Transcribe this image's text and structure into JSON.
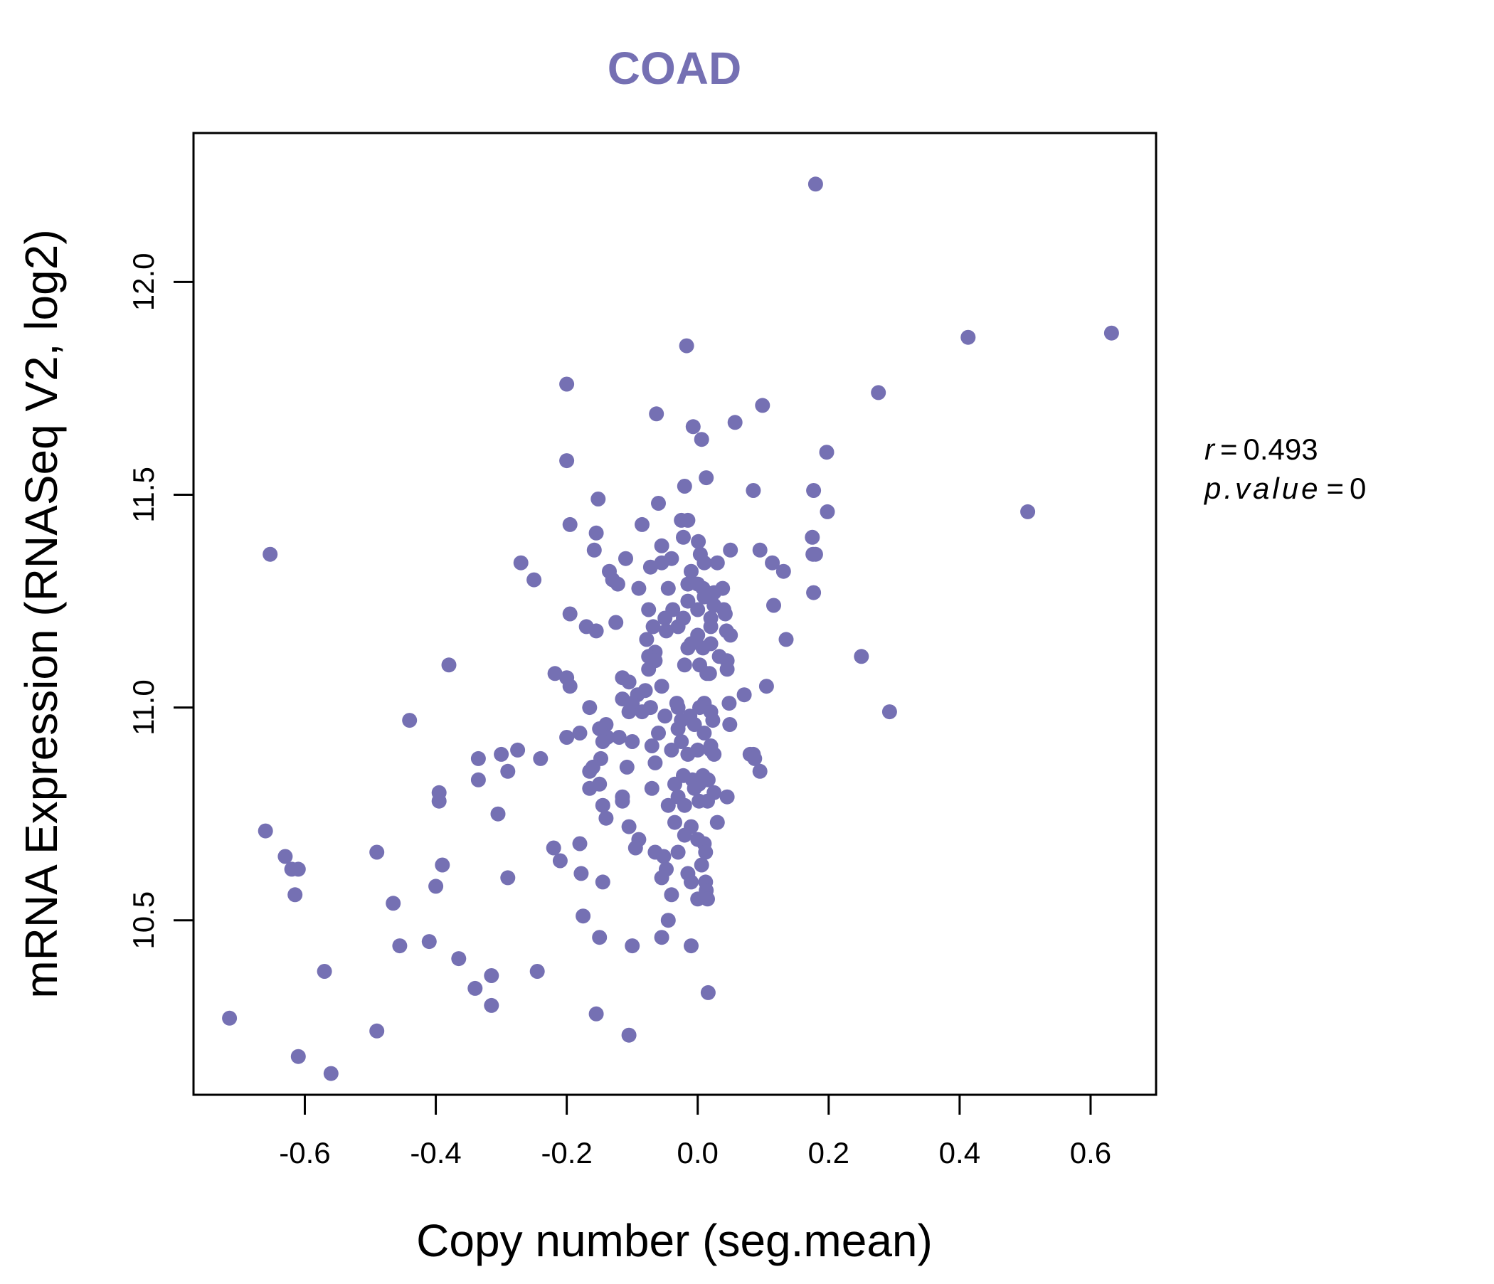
{
  "chart_data": {
    "type": "scatter",
    "title": "COAD",
    "xlabel": "Copy number (seg.mean)",
    "ylabel": "mRNA Expression (RNASeq V2, log2)",
    "xlim": [
      -0.77,
      0.7
    ],
    "ylim": [
      10.09,
      12.35
    ],
    "xticks": [
      -0.6,
      -0.4,
      -0.2,
      0.0,
      0.2,
      0.4,
      0.6
    ],
    "xtick_labels": [
      "-0.6",
      "-0.4",
      "-0.2",
      "0.0",
      "0.2",
      "0.4",
      "0.6"
    ],
    "yticks": [
      10.5,
      11.0,
      11.5,
      12.0
    ],
    "ytick_labels": [
      "10.5",
      "11.0",
      "11.5",
      "12.0"
    ],
    "grid": false,
    "legend": "none",
    "annotations": {
      "r_label": "r",
      "r_value": "0.493",
      "p_label": "p.value",
      "p_value": "0"
    },
    "colors": {
      "points": "#7570b3",
      "title": "#7570b3",
      "axis": "#000000"
    },
    "points": [
      [
        0.18,
        12.23
      ],
      [
        0.632,
        11.88
      ],
      [
        0.413,
        11.87
      ],
      [
        -0.017,
        11.85
      ],
      [
        0.276,
        11.74
      ],
      [
        -0.2,
        11.76
      ],
      [
        0.099,
        11.71
      ],
      [
        -0.063,
        11.69
      ],
      [
        0.057,
        11.67
      ],
      [
        -0.007,
        11.66
      ],
      [
        0.006,
        11.63
      ],
      [
        -0.2,
        11.58
      ],
      [
        0.197,
        11.6
      ],
      [
        -0.02,
        11.52
      ],
      [
        0.013,
        11.54
      ],
      [
        -0.152,
        11.49
      ],
      [
        -0.06,
        11.48
      ],
      [
        0.085,
        11.51
      ],
      [
        0.177,
        11.51
      ],
      [
        0.504,
        11.46
      ],
      [
        0.198,
        11.46
      ],
      [
        -0.195,
        11.43
      ],
      [
        -0.085,
        11.43
      ],
      [
        -0.025,
        11.44
      ],
      [
        -0.015,
        11.44
      ],
      [
        -0.155,
        11.41
      ],
      [
        -0.022,
        11.4
      ],
      [
        0.175,
        11.4
      ],
      [
        0.001,
        11.39
      ],
      [
        -0.158,
        11.37
      ],
      [
        -0.055,
        11.38
      ],
      [
        0.05,
        11.37
      ],
      [
        0.095,
        11.37
      ],
      [
        0.004,
        11.36
      ],
      [
        -0.653,
        11.36
      ],
      [
        0.176,
        11.36
      ],
      [
        0.18,
        11.36
      ],
      [
        -0.27,
        11.34
      ],
      [
        -0.11,
        11.35
      ],
      [
        -0.04,
        11.35
      ],
      [
        -0.055,
        11.34
      ],
      [
        0.114,
        11.34
      ],
      [
        0.03,
        11.34
      ],
      [
        0.01,
        11.34
      ],
      [
        -0.072,
        11.33
      ],
      [
        -0.135,
        11.32
      ],
      [
        -0.01,
        11.32
      ],
      [
        0.131,
        11.32
      ],
      [
        -0.25,
        11.3
      ],
      [
        -0.13,
        11.3
      ],
      [
        -0.015,
        11.29
      ],
      [
        -0.122,
        11.29
      ],
      [
        0.0,
        11.29
      ],
      [
        0.008,
        11.28
      ],
      [
        -0.09,
        11.28
      ],
      [
        -0.045,
        11.28
      ],
      [
        0.038,
        11.28
      ],
      [
        0.025,
        11.27
      ],
      [
        0.177,
        11.27
      ],
      [
        0.01,
        11.26
      ],
      [
        -0.015,
        11.25
      ],
      [
        0.025,
        11.24
      ],
      [
        0.116,
        11.24
      ],
      [
        -0.038,
        11.23
      ],
      [
        -0.075,
        11.23
      ],
      [
        0.04,
        11.23
      ],
      [
        0.0,
        11.23
      ],
      [
        -0.195,
        11.22
      ],
      [
        0.042,
        11.22
      ],
      [
        -0.022,
        11.21
      ],
      [
        -0.05,
        11.21
      ],
      [
        0.02,
        11.21
      ],
      [
        -0.125,
        11.2
      ],
      [
        -0.17,
        11.19
      ],
      [
        -0.068,
        11.19
      ],
      [
        -0.03,
        11.19
      ],
      [
        0.02,
        11.19
      ],
      [
        -0.155,
        11.18
      ],
      [
        -0.048,
        11.18
      ],
      [
        0.044,
        11.18
      ],
      [
        0.05,
        11.17
      ],
      [
        0.0,
        11.17
      ],
      [
        0.135,
        11.16
      ],
      [
        -0.078,
        11.16
      ],
      [
        -0.01,
        11.15
      ],
      [
        0.02,
        11.15
      ],
      [
        0.008,
        11.14
      ],
      [
        -0.065,
        11.13
      ],
      [
        -0.015,
        11.14
      ],
      [
        0.033,
        11.12
      ],
      [
        -0.075,
        11.12
      ],
      [
        0.25,
        11.12
      ],
      [
        0.045,
        11.11
      ],
      [
        -0.065,
        11.11
      ],
      [
        -0.02,
        11.1
      ],
      [
        0.003,
        11.1
      ],
      [
        -0.38,
        11.1
      ],
      [
        -0.075,
        11.09
      ],
      [
        0.045,
        11.09
      ],
      [
        -0.218,
        11.08
      ],
      [
        -0.2,
        11.07
      ],
      [
        0.014,
        11.08
      ],
      [
        0.018,
        11.08
      ],
      [
        -0.105,
        11.06
      ],
      [
        -0.115,
        11.07
      ],
      [
        -0.195,
        11.05
      ],
      [
        -0.055,
        11.05
      ],
      [
        0.105,
        11.05
      ],
      [
        -0.08,
        11.04
      ],
      [
        -0.092,
        11.03
      ],
      [
        0.071,
        11.03
      ],
      [
        -0.115,
        11.02
      ],
      [
        -0.1,
        11.01
      ],
      [
        -0.032,
        11.01
      ],
      [
        -0.165,
        11.0
      ],
      [
        0.01,
        11.01
      ],
      [
        0.048,
        11.01
      ],
      [
        -0.072,
        11.0
      ],
      [
        0.003,
        11.0
      ],
      [
        -0.03,
        11.0
      ],
      [
        -0.105,
        10.99
      ],
      [
        -0.085,
        10.99
      ],
      [
        0.02,
        10.99
      ],
      [
        0.293,
        10.99
      ],
      [
        -0.05,
        10.98
      ],
      [
        -0.012,
        10.98
      ],
      [
        -0.025,
        10.97
      ],
      [
        0.023,
        10.97
      ],
      [
        -0.44,
        10.97
      ],
      [
        -0.14,
        10.96
      ],
      [
        0.049,
        10.96
      ],
      [
        -0.005,
        10.96
      ],
      [
        -0.15,
        10.95
      ],
      [
        -0.03,
        10.95
      ],
      [
        -0.06,
        10.94
      ],
      [
        -0.18,
        10.94
      ],
      [
        0.01,
        10.94
      ],
      [
        -0.2,
        10.93
      ],
      [
        -0.138,
        10.93
      ],
      [
        -0.12,
        10.93
      ],
      [
        -0.1,
        10.92
      ],
      [
        -0.145,
        10.92
      ],
      [
        -0.025,
        10.92
      ],
      [
        0.02,
        10.91
      ],
      [
        -0.07,
        10.91
      ],
      [
        -0.04,
        10.9
      ],
      [
        0.0,
        10.9
      ],
      [
        0.02,
        10.9
      ],
      [
        -0.275,
        10.9
      ],
      [
        -0.3,
        10.89
      ],
      [
        0.08,
        10.89
      ],
      [
        0.085,
        10.89
      ],
      [
        -0.015,
        10.89
      ],
      [
        0.025,
        10.89
      ],
      [
        -0.335,
        10.88
      ],
      [
        -0.24,
        10.88
      ],
      [
        -0.148,
        10.88
      ],
      [
        0.087,
        10.88
      ],
      [
        -0.065,
        10.87
      ],
      [
        -0.16,
        10.86
      ],
      [
        -0.108,
        10.86
      ],
      [
        -0.29,
        10.85
      ],
      [
        -0.165,
        10.85
      ],
      [
        0.095,
        10.85
      ],
      [
        -0.022,
        10.84
      ],
      [
        0.008,
        10.84
      ],
      [
        0.016,
        10.83
      ],
      [
        -0.008,
        10.83
      ],
      [
        -0.335,
        10.83
      ],
      [
        -0.15,
        10.82
      ],
      [
        -0.035,
        10.82
      ],
      [
        0.002,
        10.82
      ],
      [
        -0.005,
        10.81
      ],
      [
        -0.165,
        10.81
      ],
      [
        -0.07,
        10.81
      ],
      [
        -0.395,
        10.8
      ],
      [
        0.025,
        10.8
      ],
      [
        -0.115,
        10.79
      ],
      [
        -0.03,
        10.79
      ],
      [
        0.045,
        10.79
      ],
      [
        -0.395,
        10.78
      ],
      [
        -0.115,
        10.78
      ],
      [
        0.002,
        10.78
      ],
      [
        0.015,
        10.78
      ],
      [
        -0.145,
        10.77
      ],
      [
        -0.045,
        10.77
      ],
      [
        -0.02,
        10.77
      ],
      [
        -0.305,
        10.75
      ],
      [
        -0.14,
        10.74
      ],
      [
        0.03,
        10.73
      ],
      [
        -0.035,
        10.73
      ],
      [
        -0.01,
        10.72
      ],
      [
        -0.105,
        10.72
      ],
      [
        -0.66,
        10.71
      ],
      [
        -0.02,
        10.7
      ],
      [
        -0.09,
        10.69
      ],
      [
        0.0,
        10.69
      ],
      [
        -0.18,
        10.68
      ],
      [
        0.01,
        10.68
      ],
      [
        -0.22,
        10.67
      ],
      [
        -0.095,
        10.67
      ],
      [
        -0.065,
        10.66
      ],
      [
        -0.03,
        10.66
      ],
      [
        -0.49,
        10.66
      ],
      [
        0.012,
        10.66
      ],
      [
        -0.63,
        10.65
      ],
      [
        -0.052,
        10.65
      ],
      [
        -0.21,
        10.64
      ],
      [
        0.006,
        10.63
      ],
      [
        -0.39,
        10.63
      ],
      [
        -0.61,
        10.62
      ],
      [
        -0.62,
        10.62
      ],
      [
        -0.048,
        10.62
      ],
      [
        -0.015,
        10.61
      ],
      [
        -0.178,
        10.61
      ],
      [
        -0.055,
        10.6
      ],
      [
        -0.29,
        10.6
      ],
      [
        0.012,
        10.59
      ],
      [
        -0.145,
        10.59
      ],
      [
        -0.01,
        10.59
      ],
      [
        -0.4,
        10.58
      ],
      [
        0.013,
        10.57
      ],
      [
        -0.04,
        10.56
      ],
      [
        -0.615,
        10.56
      ],
      [
        0.015,
        10.55
      ],
      [
        -0.465,
        10.54
      ],
      [
        0.0,
        10.55
      ],
      [
        -0.175,
        10.51
      ],
      [
        -0.045,
        10.5
      ],
      [
        -0.15,
        10.46
      ],
      [
        -0.055,
        10.46
      ],
      [
        -0.41,
        10.45
      ],
      [
        -0.455,
        10.44
      ],
      [
        -0.1,
        10.44
      ],
      [
        -0.01,
        10.44
      ],
      [
        -0.365,
        10.41
      ],
      [
        -0.245,
        10.38
      ],
      [
        -0.57,
        10.38
      ],
      [
        -0.315,
        10.37
      ],
      [
        -0.34,
        10.34
      ],
      [
        0.016,
        10.33
      ],
      [
        -0.315,
        10.3
      ],
      [
        -0.155,
        10.28
      ],
      [
        -0.715,
        10.27
      ],
      [
        -0.49,
        10.24
      ],
      [
        -0.105,
        10.23
      ],
      [
        -0.61,
        10.18
      ],
      [
        -0.56,
        10.14
      ]
    ]
  }
}
